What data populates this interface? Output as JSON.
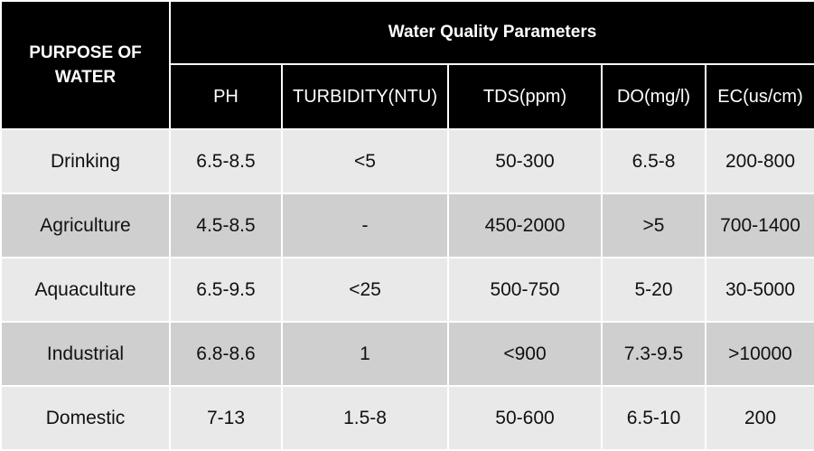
{
  "table": {
    "corner_header": "PURPOSE OF WATER",
    "group_header": "Water Quality Parameters",
    "columns": [
      "PH",
      "TURBIDITY(NTU)",
      "TDS(ppm)",
      "DO(mg/l)",
      "EC(us/cm)"
    ],
    "rows": [
      {
        "purpose": "Drinking",
        "values": [
          "6.5-8.5",
          "<5",
          "50-300",
          "6.5-8",
          "200-800"
        ]
      },
      {
        "purpose": "Agriculture",
        "values": [
          "4.5-8.5",
          "-",
          "450-2000",
          ">5",
          "700-1400"
        ]
      },
      {
        "purpose": "Aquaculture",
        "values": [
          "6.5-9.5",
          "<25",
          "500-750",
          "5-20",
          "30-5000"
        ]
      },
      {
        "purpose": "Industrial",
        "values": [
          "6.8-8.6",
          "1",
          "<900",
          "7.3-9.5",
          ">10000"
        ]
      },
      {
        "purpose": "Domestic",
        "values": [
          "7-13",
          "1.5-8",
          "50-600",
          "6.5-10",
          "200"
        ]
      }
    ]
  }
}
